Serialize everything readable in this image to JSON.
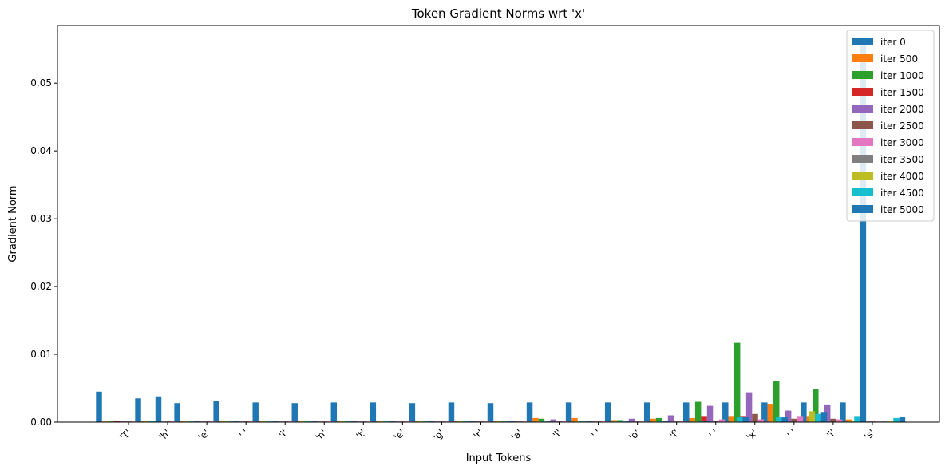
{
  "chart_data": {
    "type": "bar",
    "title": "Token Gradient Norms wrt 'x'",
    "xlabel": "Input Tokens",
    "ylabel": "Gradient Norm",
    "ylim": [
      0,
      0.0585
    ],
    "yticks": [
      "0.00",
      "0.01",
      "0.02",
      "0.03",
      "0.04",
      "0.05"
    ],
    "ytick_values": [
      0,
      0.01,
      0.02,
      0.03,
      0.04,
      0.05
    ],
    "grid": false,
    "legend_position": "top-right",
    "categories": [
      "'T'",
      "'h'",
      "'e'",
      "' '",
      "'i'",
      "'n'",
      "'t'",
      "'e'",
      "'g'",
      "'r'",
      "'a'",
      "'l'",
      "' '",
      "'o'",
      "'f'",
      "' '",
      "'x'",
      "' '",
      "'i'",
      "'s'"
    ],
    "series": [
      {
        "name": "iter 0",
        "color": "#1f77b4",
        "values": [
          0.0045,
          0.0035,
          0.0028,
          0.0031,
          0.0029,
          0.0028,
          0.0029,
          0.0029,
          0.0028,
          0.0029,
          0.0028,
          0.0029,
          0.0029,
          0.0029,
          0.0029,
          0.0029,
          0.0029,
          0.0029,
          0.0029,
          0.0029
        ]
      },
      {
        "name": "iter 500",
        "color": "#ff7f0e",
        "values": [
          0.0001,
          0.0001,
          0.0001,
          0.0001,
          0.0001,
          0.0001,
          0.0001,
          0.0001,
          0.0001,
          0.0001,
          0.0001,
          0.0006,
          0.0006,
          0.0003,
          0.0005,
          0.0006,
          0.0009,
          0.0027,
          0.0009,
          0.0004
        ]
      },
      {
        "name": "iter 1000",
        "color": "#2ca02c",
        "values": [
          0.0001,
          0.0001,
          0.0001,
          0.0001,
          0.0001,
          0.0001,
          0.0001,
          0.0001,
          0.0001,
          0.0001,
          0.0002,
          0.0005,
          0.0001,
          0.0003,
          0.0006,
          0.003,
          0.0117,
          0.006,
          0.0049,
          0.0001
        ]
      },
      {
        "name": "iter 1500",
        "color": "#d62728",
        "values": [
          0.0002,
          0.0001,
          0.0001,
          0.0001,
          0.0001,
          0.0001,
          0.0001,
          0.0001,
          0.0001,
          0.0001,
          0.0001,
          0.0001,
          0.0001,
          0.0001,
          0.0001,
          0.0009,
          0.0009,
          0.0006,
          0.0003,
          0.0001
        ]
      },
      {
        "name": "iter 2000",
        "color": "#9467bd",
        "values": [
          0.0002,
          0.0001,
          0.0001,
          0.0001,
          0.0001,
          0.0001,
          0.0001,
          0.0001,
          0.0001,
          0.0002,
          0.0002,
          0.0004,
          0.0002,
          0.0005,
          0.001,
          0.0024,
          0.0044,
          0.0017,
          0.0026,
          0.0001
        ]
      },
      {
        "name": "iter 2500",
        "color": "#8c564b",
        "values": [
          0.0001,
          0.0001,
          0.0001,
          0.0001,
          0.0001,
          0.0001,
          0.0001,
          0.0001,
          0.0001,
          0.0001,
          0.0001,
          0.0001,
          0.0001,
          0.0001,
          0.0001,
          0.0002,
          0.0012,
          0.0005,
          0.0005,
          0.0001
        ]
      },
      {
        "name": "iter 3000",
        "color": "#e377c2",
        "values": [
          0.0001,
          0.0001,
          0.0001,
          0.0001,
          0.0001,
          0.0001,
          0.0001,
          0.0001,
          0.0001,
          0.0001,
          0.0001,
          0.0001,
          0.0001,
          0.0001,
          0.0001,
          0.0004,
          0.0004,
          0.0009,
          0.0004,
          0.0001
        ]
      },
      {
        "name": "iter 3500",
        "color": "#7f7f7f",
        "values": [
          0.0001,
          0.0001,
          0.0001,
          0.0001,
          0.0001,
          0.0001,
          0.0001,
          0.0001,
          0.0001,
          0.0001,
          0.0001,
          0.0001,
          0.0001,
          0.0001,
          0.0001,
          0.0001,
          0.0001,
          0.0001,
          0.0001,
          0.0001
        ]
      },
      {
        "name": "iter 4000",
        "color": "#bcbd22",
        "values": [
          0.0001,
          0.0001,
          0.0001,
          0.0001,
          0.0001,
          0.0001,
          0.0001,
          0.0001,
          0.0001,
          0.0001,
          0.0001,
          0.0001,
          0.0001,
          0.0001,
          0.0001,
          0.0001,
          0.0001,
          0.0016,
          0.0001,
          0.0001
        ]
      },
      {
        "name": "iter 4500",
        "color": "#17becf",
        "values": [
          0.0002,
          0.0001,
          0.0001,
          0.0001,
          0.0001,
          0.0001,
          0.0001,
          0.0001,
          0.0001,
          0.0001,
          0.0001,
          0.0001,
          0.0001,
          0.0001,
          0.0001,
          0.0007,
          0.0007,
          0.0012,
          0.0009,
          0.0006
        ]
      },
      {
        "name": "iter 5000",
        "color": "#1f77b4",
        "values": [
          0.0038,
          0.0001,
          0.0001,
          0.0001,
          0.0001,
          0.0001,
          0.0001,
          0.0001,
          0.0001,
          0.0001,
          0.0001,
          0.0001,
          0.0001,
          0.0001,
          0.0001,
          0.0007,
          0.0007,
          0.0015,
          0.0555,
          0.0007
        ]
      }
    ]
  }
}
